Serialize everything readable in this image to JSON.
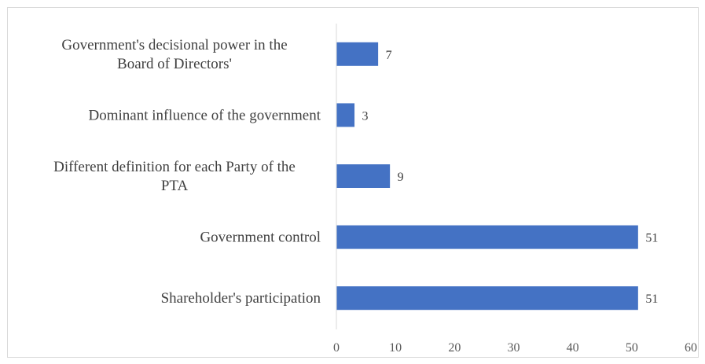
{
  "chart_data": {
    "type": "bar",
    "orientation": "horizontal",
    "title": "",
    "xlabel": "",
    "ylabel": "",
    "categories": [
      [
        "Government's decisional power in the",
        "Board of Directors'"
      ],
      [
        "Dominant influence of the government"
      ],
      [
        "Different definition for each Party of the",
        "PTA"
      ],
      [
        "Government control"
      ],
      [
        "Shareholder's participation"
      ]
    ],
    "values": [
      7,
      3,
      9,
      51,
      51
    ],
    "xlim": [
      0,
      60
    ],
    "xticks": [
      0,
      10,
      20,
      30,
      40,
      50,
      60
    ],
    "grid": false,
    "legend": "none",
    "bar_color": "#4472c4",
    "axis_color": "#d9d9d9"
  }
}
